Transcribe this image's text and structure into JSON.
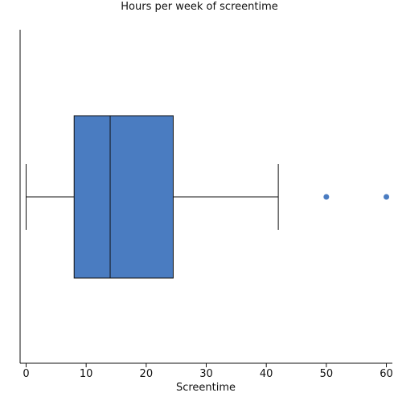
{
  "chart_data": {
    "type": "boxplot",
    "orientation": "horizontal",
    "title": "Hours per week of screentime",
    "xlabel": "Screentime",
    "ylabel": "",
    "xlim": [
      -1,
      61
    ],
    "xticks": [
      0,
      10,
      20,
      30,
      40,
      50,
      60
    ],
    "xtick_labels": [
      "0",
      "10",
      "20",
      "30",
      "40",
      "50",
      "60"
    ],
    "grid": false,
    "legend": "none",
    "box": {
      "whisker_low": 0,
      "q1": 8,
      "median": 14,
      "q3": 24.5,
      "whisker_high": 42,
      "outliers": [
        50,
        60
      ]
    },
    "colors": {
      "box_fill": "#4a7cc1",
      "outline": "#111111",
      "outlier": "#4a7cc1"
    }
  }
}
